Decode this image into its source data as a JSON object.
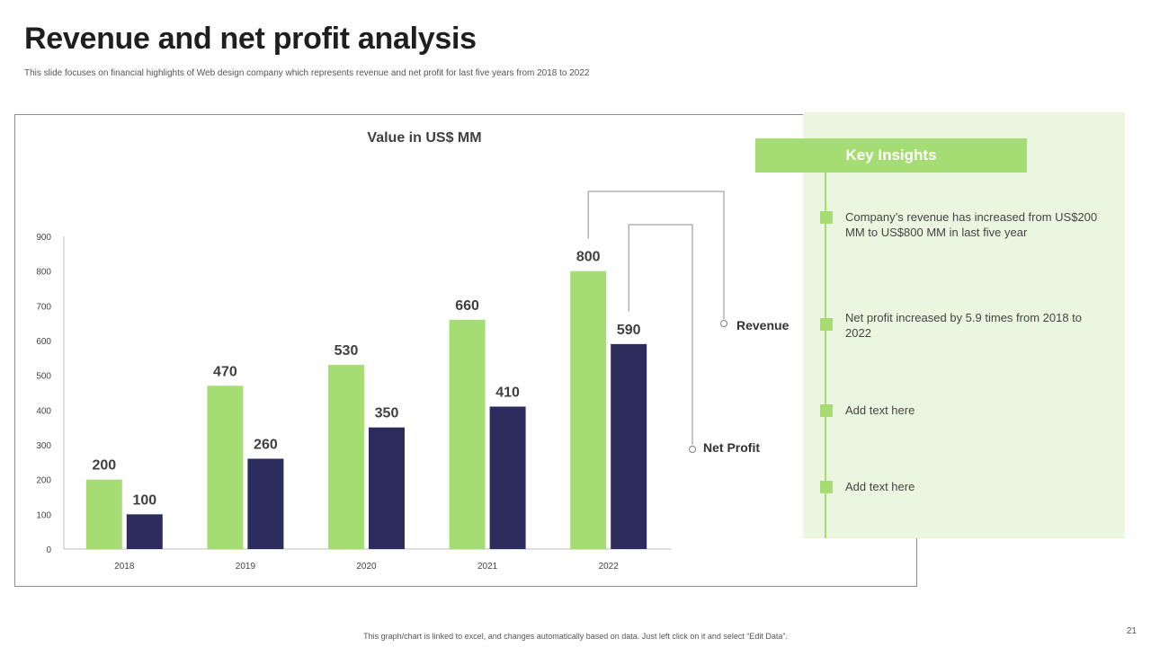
{
  "slide": {
    "title": "Revenue and net profit analysis",
    "subtitle": "This slide focuses on financial highlights of Web design company which represents revenue and net profit for last five years from 2018 to 2022",
    "footer": "This graph/chart is linked to excel, and changes automatically based on data. Just left click on it and select “Edit Data”.",
    "page_number": "21"
  },
  "insights": {
    "header": "Key Insights",
    "items": [
      "Company’s revenue has increased from US$200 MM to US$800 MM in last five year",
      "Net profit increased by 5.9 times from 2018 to 2022",
      "Add text here",
      "Add text here"
    ]
  },
  "chart_data": {
    "type": "bar",
    "title": "Value in US$ MM",
    "categories": [
      "2018",
      "2019",
      "2020",
      "2021",
      "2022"
    ],
    "series": [
      {
        "name": "Revenue",
        "values": [
          200,
          470,
          530,
          660,
          800
        ],
        "color": "#a6dc74"
      },
      {
        "name": "Net Profit",
        "values": [
          100,
          260,
          350,
          410,
          590
        ],
        "color": "#2c2d5c"
      }
    ],
    "ylim": [
      0,
      900
    ],
    "yticks": [
      0,
      100,
      200,
      300,
      400,
      500,
      600,
      700,
      800,
      900
    ],
    "xlabel": "",
    "ylabel": "",
    "grid": false,
    "legend_placement": "right, callout lines"
  }
}
